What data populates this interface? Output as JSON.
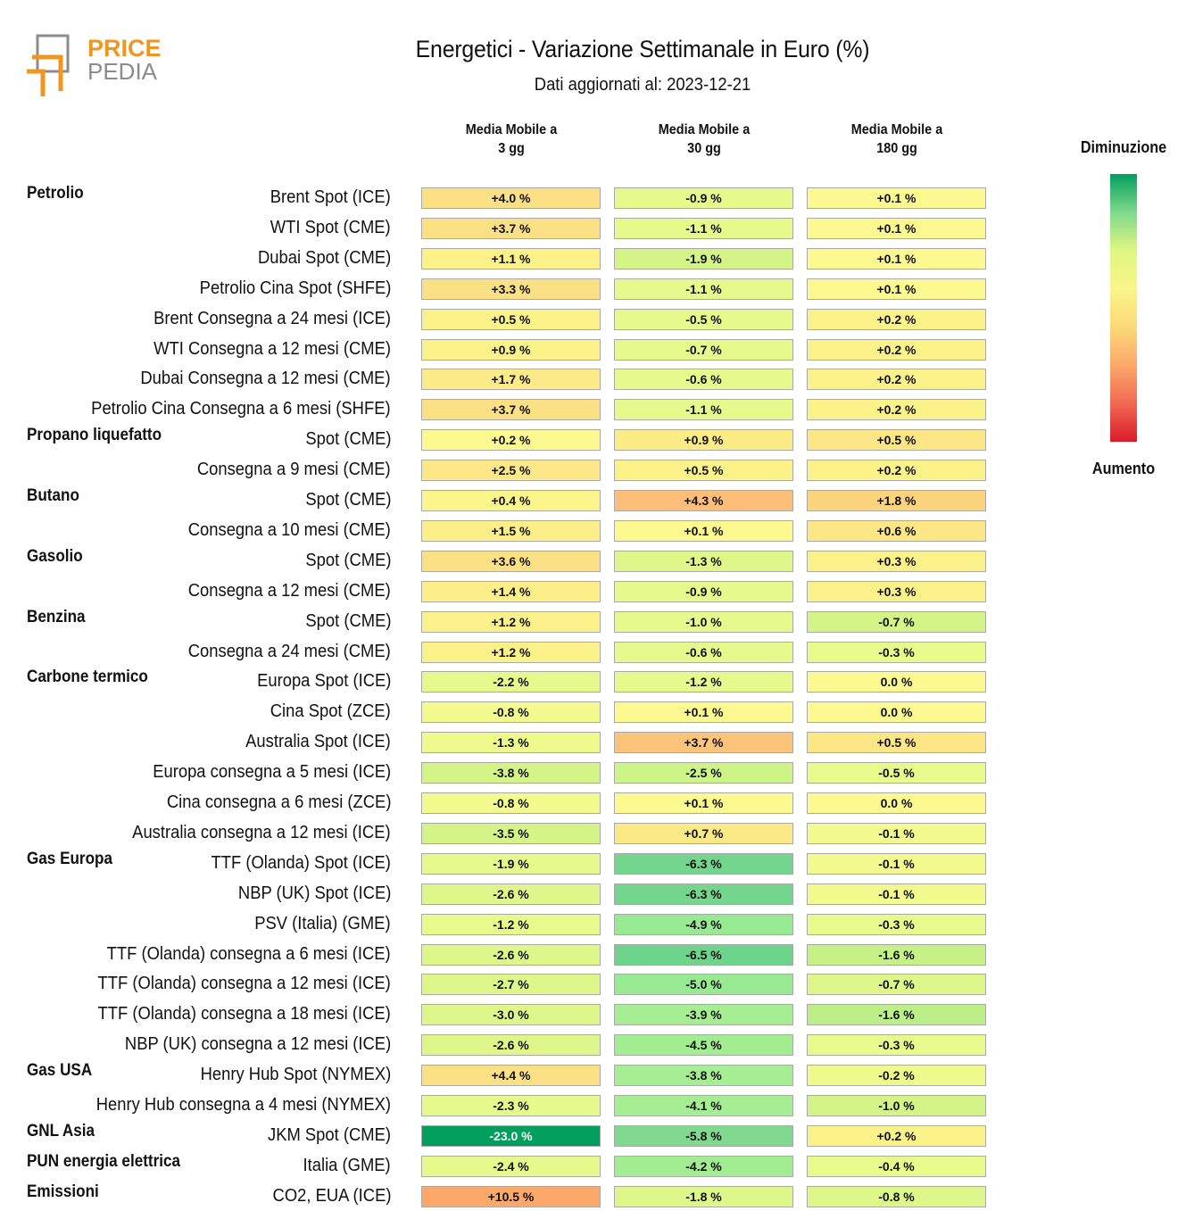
{
  "title": "Energetici - Variazione Settimanale in Euro (%)",
  "subtitle": "Dati aggiornati al: 2023-12-21",
  "logo": {
    "line1": "PRICE",
    "line2": "PEDIA",
    "colors": {
      "orange": "#f0961e",
      "gray": "#8c8c8c"
    }
  },
  "legend": {
    "top_label": "Diminuzione",
    "bottom_label": "Aumento",
    "gradient": [
      "#029e5e",
      "#7fd98d",
      "#dff781",
      "#fbf58a",
      "#fcd978",
      "#fba86a",
      "#f06a52",
      "#da1a2a"
    ]
  },
  "chart_data": {
    "type": "table",
    "columns": [
      "Media Mobile a\n3 gg",
      "Media Mobile a\n30 gg",
      "Media Mobile a\n180 gg"
    ],
    "groups": [
      {
        "name": "Petrolio",
        "rows": [
          {
            "label": "Brent Spot (ICE)",
            "values": [
              "+4.0 %",
              "-0.9 %",
              "+0.1 %"
            ],
            "colors": [
              "#fce085",
              "#e5f98c",
              "#fbf990"
            ]
          },
          {
            "label": "WTI Spot (CME)",
            "values": [
              "+3.7 %",
              "-1.1 %",
              "+0.1 %"
            ],
            "colors": [
              "#fce085",
              "#e5f98c",
              "#fbf990"
            ]
          },
          {
            "label": "Dubai Spot (CME)",
            "values": [
              "+1.1 %",
              "-1.9 %",
              "+0.1 %"
            ],
            "colors": [
              "#fbf38a",
              "#d4f488",
              "#fbf990"
            ]
          },
          {
            "label": "Petrolio Cina Spot (SHFE)",
            "values": [
              "+3.3 %",
              "-1.1 %",
              "+0.1 %"
            ],
            "colors": [
              "#fce085",
              "#e5f98c",
              "#fbf990"
            ]
          },
          {
            "label": "Brent Consegna a 24 mesi (ICE)",
            "values": [
              "+0.5 %",
              "-0.5 %",
              "+0.2 %"
            ],
            "colors": [
              "#fbf38a",
              "#e5f98c",
              "#fbf38a"
            ]
          },
          {
            "label": "WTI Consegna a 12 mesi (CME)",
            "values": [
              "+0.9 %",
              "-0.7 %",
              "+0.2 %"
            ],
            "colors": [
              "#fbf38a",
              "#e5f98c",
              "#fbf38a"
            ]
          },
          {
            "label": "Dubai Consegna a 12 mesi (CME)",
            "values": [
              "+1.7 %",
              "-0.6 %",
              "+0.2 %"
            ],
            "colors": [
              "#fceb88",
              "#e5f98c",
              "#fbf38a"
            ]
          },
          {
            "label": "Petrolio Cina Consegna a 6 mesi (SHFE)",
            "values": [
              "+3.7 %",
              "-1.1 %",
              "+0.2 %"
            ],
            "colors": [
              "#fce085",
              "#e5f98c",
              "#fbf38a"
            ]
          }
        ]
      },
      {
        "name": "Propano liquefatto",
        "rows": [
          {
            "label": "Spot (CME)",
            "values": [
              "+0.2 %",
              "+0.9 %",
              "+0.5 %"
            ],
            "colors": [
              "#fbf990",
              "#fbec88",
              "#fce685"
            ]
          },
          {
            "label": "Consegna a 9 mesi (CME)",
            "values": [
              "+2.5 %",
              "+0.5 %",
              "+0.2 %"
            ],
            "colors": [
              "#fce888",
              "#fbf38a",
              "#fbf38a"
            ]
          }
        ]
      },
      {
        "name": "Butano",
        "rows": [
          {
            "label": "Spot (CME)",
            "values": [
              "+0.4 %",
              "+4.3 %",
              "+1.8 %"
            ],
            "colors": [
              "#fbf68c",
              "#fcbe78",
              "#fcd47e"
            ]
          },
          {
            "label": "Consegna a 10 mesi (CME)",
            "values": [
              "+1.5 %",
              "+0.1 %",
              "+0.6 %"
            ],
            "colors": [
              "#fcee88",
              "#fbf990",
              "#fce685"
            ]
          }
        ]
      },
      {
        "name": "Gasolio",
        "rows": [
          {
            "label": "Spot (CME)",
            "values": [
              "+3.6 %",
              "-1.3 %",
              "+0.3 %"
            ],
            "colors": [
              "#fce085",
              "#dff78a",
              "#fbf18a"
            ]
          },
          {
            "label": "Consegna a 12 mesi (CME)",
            "values": [
              "+1.4 %",
              "-0.9 %",
              "+0.3 %"
            ],
            "colors": [
              "#fcee88",
              "#e5f98c",
              "#fbf18a"
            ]
          }
        ]
      },
      {
        "name": "Benzina",
        "rows": [
          {
            "label": "Spot (CME)",
            "values": [
              "+1.2 %",
              "-1.0 %",
              "-0.7 %"
            ],
            "colors": [
              "#fbf18a",
              "#e5f98c",
              "#d4f488"
            ]
          },
          {
            "label": "Consegna a 24 mesi (CME)",
            "values": [
              "+1.2 %",
              "-0.6 %",
              "-0.3 %"
            ],
            "colors": [
              "#fbf18a",
              "#e5f98c",
              "#e9fa8c"
            ]
          }
        ]
      },
      {
        "name": "Carbone termico",
        "rows": [
          {
            "label": "Europa Spot (ICE)",
            "values": [
              "-2.2 %",
              "-1.2 %",
              "0.0 %"
            ],
            "colors": [
              "#e5f98c",
              "#e5f98c",
              "#fbf990"
            ]
          },
          {
            "label": "Cina Spot (ZCE)",
            "values": [
              "-0.8 %",
              "+0.1 %",
              "0.0 %"
            ],
            "colors": [
              "#f3fb8e",
              "#fbf990",
              "#fbf990"
            ]
          },
          {
            "label": "Australia Spot (ICE)",
            "values": [
              "-1.3 %",
              "+3.7 %",
              "+0.5 %"
            ],
            "colors": [
              "#eefa8c",
              "#fcc47a",
              "#fce685"
            ]
          },
          {
            "label": "Europa consegna a 5 mesi (ICE)",
            "values": [
              "-3.8 %",
              "-2.5 %",
              "-0.5 %"
            ],
            "colors": [
              "#d4f488",
              "#cef386",
              "#e9fa8c"
            ]
          },
          {
            "label": "Cina consegna a 6 mesi (ZCE)",
            "values": [
              "-0.8 %",
              "+0.1 %",
              "0.0 %"
            ],
            "colors": [
              "#f3fb8e",
              "#fbf990",
              "#fbf990"
            ]
          },
          {
            "label": "Australia consegna a 12 mesi (ICE)",
            "values": [
              "-3.5 %",
              "+0.7 %",
              "-0.1 %"
            ],
            "colors": [
              "#d4f488",
              "#fbe986",
              "#f3fb8e"
            ]
          }
        ]
      },
      {
        "name": "Gas Europa",
        "rows": [
          {
            "label": "TTF (Olanda) Spot (ICE)",
            "values": [
              "-1.9 %",
              "-6.3 %",
              "-0.1 %"
            ],
            "colors": [
              "#e5f98c",
              "#74d58c",
              "#f3fb8e"
            ]
          },
          {
            "label": "NBP (UK) Spot (ICE)",
            "values": [
              "-2.6 %",
              "-6.3 %",
              "-0.1 %"
            ],
            "colors": [
              "#dff78a",
              "#74d58c",
              "#f3fb8e"
            ]
          },
          {
            "label": "PSV (Italia) (GME)",
            "values": [
              "-1.2 %",
              "-4.9 %",
              "-0.3 %"
            ],
            "colors": [
              "#e9fa8c",
              "#98ea92",
              "#e9fa8c"
            ]
          },
          {
            "label": "TTF (Olanda) consegna a 6 mesi (ICE)",
            "values": [
              "-2.6 %",
              "-6.5 %",
              "-1.6 %"
            ],
            "colors": [
              "#dff78a",
              "#6fd48b",
              "#c6f186"
            ]
          },
          {
            "label": "TTF (Olanda) consegna a 12 mesi (ICE)",
            "values": [
              "-2.7 %",
              "-5.0 %",
              "-0.7 %"
            ],
            "colors": [
              "#dff78a",
              "#98ea92",
              "#dff78a"
            ]
          },
          {
            "label": "TTF (Olanda) consegna a 18 mesi (ICE)",
            "values": [
              "-3.0 %",
              "-3.9 %",
              "-1.6 %"
            ],
            "colors": [
              "#dff78a",
              "#a6ee93",
              "#bdef88"
            ]
          },
          {
            "label": "NBP (UK) consegna a 12 mesi (ICE)",
            "values": [
              "-2.6 %",
              "-4.5 %",
              "-0.3 %"
            ],
            "colors": [
              "#dff78a",
              "#a2ec92",
              "#e9fa8c"
            ]
          }
        ]
      },
      {
        "name": "Gas USA",
        "rows": [
          {
            "label": "Henry Hub Spot (NYMEX)",
            "values": [
              "+4.4 %",
              "-3.8 %",
              "-0.2 %"
            ],
            "colors": [
              "#fce085",
              "#a6ee93",
              "#eefa8c"
            ]
          },
          {
            "label": "Henry Hub consegna a 4 mesi (NYMEX)",
            "values": [
              "-2.3 %",
              "-4.1 %",
              "-1.0 %"
            ],
            "colors": [
              "#e5f98c",
              "#a6ee93",
              "#d4f488"
            ]
          }
        ]
      },
      {
        "name": "GNL Asia",
        "rows": [
          {
            "label": "JKM Spot (CME)",
            "values": [
              "-23.0 %",
              "-5.8 %",
              "+0.2 %"
            ],
            "colors": [
              "#029e5e",
              "#80d98e",
              "#fbf38a"
            ]
          }
        ]
      },
      {
        "name": "PUN energia elettrica",
        "rows": [
          {
            "label": "Italia (GME)",
            "values": [
              "-2.4 %",
              "-4.2 %",
              "-0.4 %"
            ],
            "colors": [
              "#e5f98c",
              "#a2ec92",
              "#e9fa8c"
            ]
          }
        ]
      },
      {
        "name": "Emissioni",
        "rows": [
          {
            "label": "CO2, EUA (ICE)",
            "values": [
              "+10.5 %",
              "-1.8 %",
              "-0.8 %"
            ],
            "colors": [
              "#fba86a",
              "#dff78a",
              "#dff78a"
            ]
          }
        ]
      }
    ]
  }
}
